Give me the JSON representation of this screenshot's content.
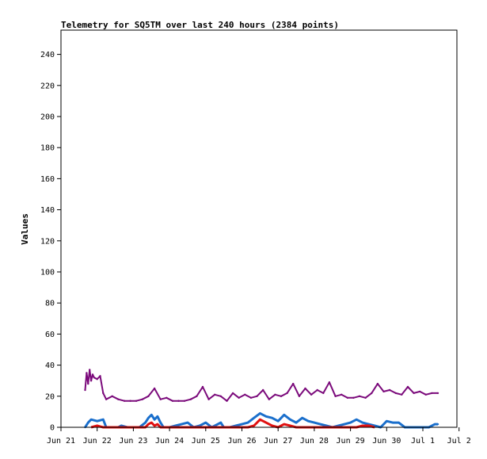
{
  "chart_data": {
    "type": "line",
    "title": "Telemetry for SQ5TM over last 240 hours (2384 points)",
    "xlabel": "",
    "ylabel": "Values",
    "ylim": [
      0,
      256
    ],
    "xlim": [
      0,
      240
    ],
    "grid": false,
    "legend": "none",
    "y_ticks": [
      0,
      20,
      40,
      60,
      80,
      100,
      120,
      140,
      160,
      180,
      200,
      220,
      240
    ],
    "x_ticks": [
      {
        "label": "Jun 21",
        "hour": 0
      },
      {
        "label": "Jun 22",
        "hour": 24
      },
      {
        "label": "Jun 23",
        "hour": 48
      },
      {
        "label": "Jun 24",
        "hour": 72
      },
      {
        "label": "Jun 25",
        "hour": 96
      },
      {
        "label": "Jun 26",
        "hour": 120
      },
      {
        "label": "Jun 27",
        "hour": 144
      },
      {
        "label": "Jun 28",
        "hour": 168
      },
      {
        "label": "Jun 29",
        "hour": 192
      },
      {
        "label": "Jun 30",
        "hour": 216
      },
      {
        "label": "Jul 1",
        "hour": 240
      },
      {
        "label": "Jul 2",
        "hour": 264
      }
    ],
    "series": [
      {
        "color": "#7b0a7b",
        "x": [
          16,
          17,
          18,
          19,
          20,
          21,
          22,
          24,
          26,
          28,
          30,
          34,
          38,
          42,
          46,
          50,
          54,
          58,
          62,
          66,
          70,
          74,
          78,
          82,
          86,
          90,
          94,
          98,
          102,
          106,
          110,
          114,
          118,
          122,
          126,
          130,
          134,
          138,
          142,
          146,
          150,
          154,
          158,
          162,
          166,
          170,
          174,
          178,
          182,
          186,
          190,
          194,
          198,
          202,
          206,
          210,
          214,
          218,
          222,
          226,
          230,
          234,
          238,
          242,
          246,
          250
        ],
        "y": [
          24,
          35,
          28,
          37,
          30,
          34,
          32,
          31,
          33,
          22,
          18,
          20,
          18,
          17,
          17,
          17,
          18,
          20,
          25,
          18,
          19,
          17,
          17,
          17,
          18,
          20,
          26,
          18,
          21,
          20,
          17,
          22,
          19,
          21,
          19,
          20,
          24,
          18,
          21,
          20,
          22,
          28,
          20,
          25,
          21,
          24,
          22,
          29,
          20,
          21,
          19,
          19,
          20,
          19,
          22,
          28,
          23,
          24,
          22,
          21,
          26,
          22,
          23,
          21,
          22,
          22
        ]
      },
      {
        "color": "#1a6fcc",
        "x": [
          16,
          18,
          20,
          24,
          28,
          30,
          34,
          38,
          40,
          44,
          46,
          48,
          52,
          56,
          58,
          60,
          62,
          64,
          66,
          68,
          72,
          76,
          80,
          84,
          88,
          92,
          96,
          100,
          104,
          106,
          108,
          112,
          116,
          120,
          124,
          128,
          132,
          136,
          140,
          144,
          148,
          152,
          156,
          160,
          164,
          168,
          172,
          176,
          180,
          184,
          188,
          192,
          196,
          200,
          204,
          208,
          212,
          216,
          220,
          224,
          228,
          232,
          236,
          240,
          244,
          248,
          250
        ],
        "y": [
          0,
          3,
          5,
          4,
          5,
          0,
          0,
          0,
          1,
          0,
          0,
          0,
          0,
          3,
          6,
          8,
          5,
          7,
          3,
          0,
          0,
          1,
          2,
          3,
          0,
          1,
          3,
          0,
          2,
          3,
          0,
          0,
          1,
          2,
          3,
          6,
          9,
          7,
          6,
          4,
          8,
          5,
          3,
          6,
          4,
          3,
          2,
          1,
          0,
          1,
          2,
          3,
          5,
          3,
          2,
          1,
          0,
          4,
          3,
          3,
          0,
          0,
          0,
          0,
          0,
          2,
          2
        ]
      },
      {
        "color": "#e01010",
        "x": [
          20,
          24,
          28,
          56,
          58,
          60,
          62,
          64,
          66,
          124,
          128,
          132,
          136,
          140,
          144,
          148,
          152,
          156,
          160,
          196,
          200,
          204,
          208
        ],
        "y": [
          0,
          1,
          0,
          0,
          2,
          3,
          1,
          2,
          0,
          0,
          1,
          5,
          3,
          1,
          0,
          2,
          1,
          0,
          0,
          0,
          1,
          1,
          0
        ]
      },
      {
        "color": "#222222",
        "x": [
          16,
          100,
          130,
          200,
          250
        ],
        "y": [
          0,
          0,
          0,
          0,
          0
        ]
      }
    ]
  }
}
